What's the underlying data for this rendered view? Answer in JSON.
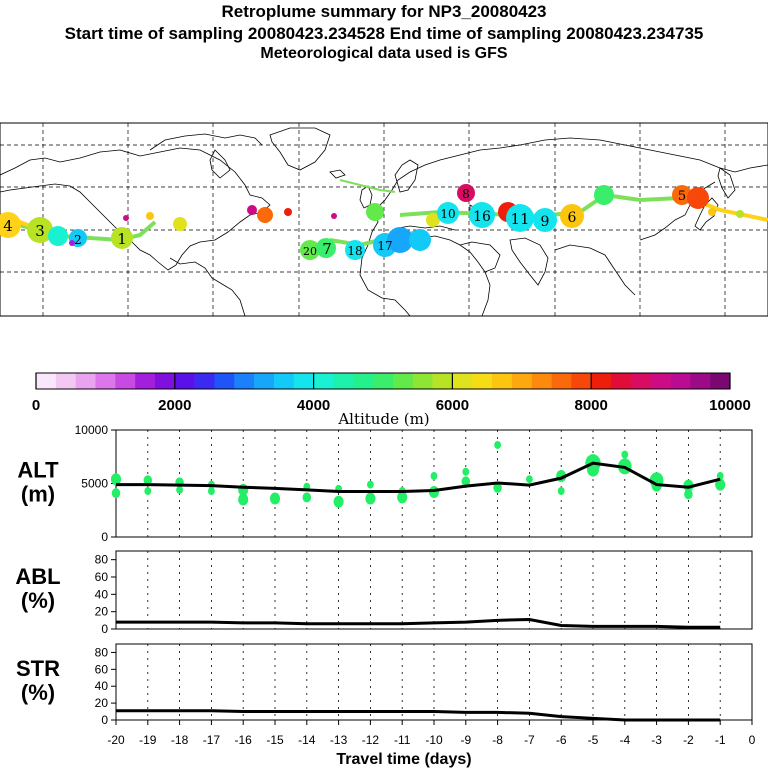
{
  "header": {
    "title": "Retroplume summary for NP3_20080423",
    "sampling_line": "Start time of sampling 20080423.234528     End time of sampling 20080423.234735",
    "met_line": "Meteorological data used is GFS"
  },
  "colors": {
    "track_green": "#7ee05a",
    "track_yellow": "#ffd21a",
    "marker_green": "#22ee66",
    "line": "#000000"
  },
  "colorbar": {
    "label": "Altitude (m)",
    "ticks": [
      "0",
      "2000",
      "4000",
      "6000",
      "8000",
      "10000"
    ],
    "colors": [
      "#fbe7fb",
      "#f3c8f3",
      "#e9a3ef",
      "#dc76ea",
      "#c94ae3",
      "#a41fdb",
      "#7f10de",
      "#5a10e8",
      "#3a2af2",
      "#1f55f8",
      "#1b80fb",
      "#16a7fb",
      "#12c9f7",
      "#14e4ee",
      "#18f1d2",
      "#1df2ad",
      "#24f08c",
      "#3aed6a",
      "#62ea4a",
      "#8ee534",
      "#b8e224",
      "#dfe21c",
      "#f6dc14",
      "#fcc510",
      "#fda80e",
      "#fd8a0c",
      "#fb6a0a",
      "#f74709",
      "#ee1e0b",
      "#e20c38",
      "#d80c62",
      "#cc0b84",
      "#bb0b94",
      "#9c0a88",
      "#7a0873"
    ]
  },
  "map": {
    "track_labels": [
      {
        "text": "4"
      },
      {
        "text": "3"
      },
      {
        "text": "2"
      },
      {
        "text": "1"
      },
      {
        "text": "20"
      },
      {
        "text": "7"
      },
      {
        "text": "18"
      },
      {
        "text": "17"
      },
      {
        "text": "16"
      },
      {
        "text": "11"
      },
      {
        "text": "10"
      },
      {
        "text": "9"
      },
      {
        "text": "8"
      },
      {
        "text": "6"
      },
      {
        "text": "5"
      }
    ]
  },
  "chart_data": [
    {
      "type": "line",
      "panel": "ALT",
      "ylabel": "ALT (m)",
      "ylabel_lines": [
        "ALT",
        "(m)"
      ],
      "ylim": [
        0,
        10000
      ],
      "yticks": [
        "0",
        "5000",
        "10000"
      ],
      "ytick_values": [
        0,
        5000,
        10000
      ],
      "xlim": [
        -20,
        0
      ],
      "series": [
        {
          "name": "mean",
          "x": [
            -20,
            -19,
            -18,
            -17,
            -16,
            -15,
            -14,
            -13,
            -12,
            -11,
            -10,
            -9,
            -8,
            -7,
            -6,
            -5,
            -4,
            -3,
            -2,
            -1
          ],
          "values": [
            4900,
            4900,
            4850,
            4800,
            4650,
            4550,
            4400,
            4250,
            4250,
            4250,
            4350,
            4750,
            5050,
            4850,
            5500,
            6900,
            6500,
            4900,
            4650,
            5400
          ]
        }
      ],
      "scatter": {
        "x": [
          -20,
          -20,
          -19,
          -19,
          -18,
          -18,
          -17,
          -17,
          -16,
          -16,
          -15,
          -14,
          -14,
          -13,
          -13,
          -12,
          -12,
          -11,
          -11,
          -10,
          -10,
          -9,
          -9,
          -8,
          -8,
          -7,
          -6,
          -6,
          -5,
          -5,
          -4,
          -4,
          -3,
          -3,
          -2,
          -2,
          -1,
          -1
        ],
        "y": [
          5400,
          4100,
          5300,
          4300,
          5100,
          4400,
          4900,
          4300,
          4400,
          3500,
          3600,
          3700,
          4700,
          3300,
          4500,
          3600,
          4900,
          3700,
          4300,
          4200,
          5700,
          5200,
          6100,
          4600,
          8600,
          5400,
          5700,
          4300,
          6900,
          6300,
          6600,
          7700,
          5300,
          4800,
          4800,
          4000,
          4900,
          5700
        ],
        "sizes": [
          6,
          5,
          5,
          4,
          5,
          4,
          4,
          4,
          6,
          6,
          6,
          5,
          4,
          6,
          4,
          6,
          4,
          6,
          4,
          6,
          4,
          5,
          4,
          5,
          4,
          4,
          6,
          4,
          9,
          7,
          8,
          4,
          8,
          6,
          6,
          5,
          6,
          4
        ],
        "colors": [
          "#22ee66"
        ]
      }
    },
    {
      "type": "line",
      "panel": "ABL",
      "ylabel": "ABL (%)",
      "ylabel_lines": [
        "ABL",
        "(%)"
      ],
      "ylim": [
        0,
        90
      ],
      "yticks": [
        "0",
        "20",
        "40",
        "60",
        "80"
      ],
      "ytick_values": [
        0,
        20,
        40,
        60,
        80
      ],
      "xlim": [
        -20,
        0
      ],
      "series": [
        {
          "name": "ABL",
          "x": [
            -20,
            -19,
            -18,
            -17,
            -16,
            -15,
            -14,
            -13,
            -12,
            -11,
            -10,
            -9,
            -8,
            -7,
            -6,
            -5,
            -4,
            -3,
            -2,
            -1
          ],
          "values": [
            8,
            8,
            8,
            8,
            7,
            7,
            6,
            6,
            6,
            6,
            7,
            8,
            10,
            11,
            4,
            3,
            3,
            3,
            2,
            2
          ]
        }
      ]
    },
    {
      "type": "line",
      "panel": "STR",
      "ylabel": "STR (%)",
      "ylabel_lines": [
        "STR",
        "(%)"
      ],
      "ylim": [
        0,
        90
      ],
      "yticks": [
        "0",
        "20",
        "40",
        "60",
        "80"
      ],
      "ytick_values": [
        0,
        20,
        40,
        60,
        80
      ],
      "xlim": [
        -20,
        0
      ],
      "xlabel": "Travel time (days)",
      "xticks": [
        "-20",
        "-19",
        "-18",
        "-17",
        "-16",
        "-15",
        "-14",
        "-13",
        "-12",
        "-11",
        "-10",
        "-9",
        "-8",
        "-7",
        "-6",
        "-5",
        "-4",
        "-3",
        "-2",
        "-1",
        "0"
      ],
      "xtick_values": [
        -20,
        -19,
        -18,
        -17,
        -16,
        -15,
        -14,
        -13,
        -12,
        -11,
        -10,
        -9,
        -8,
        -7,
        -6,
        -5,
        -4,
        -3,
        -2,
        -1,
        0
      ],
      "series": [
        {
          "name": "STR",
          "x": [
            -20,
            -19,
            -18,
            -17,
            -16,
            -15,
            -14,
            -13,
            -12,
            -11,
            -10,
            -9,
            -8,
            -7,
            -6,
            -5,
            -4,
            -3,
            -2,
            -1
          ],
          "values": [
            11,
            11,
            11,
            11,
            10,
            10,
            10,
            10,
            10,
            10,
            10,
            9,
            9,
            8,
            4,
            2,
            0,
            0,
            0,
            0
          ]
        }
      ]
    }
  ]
}
